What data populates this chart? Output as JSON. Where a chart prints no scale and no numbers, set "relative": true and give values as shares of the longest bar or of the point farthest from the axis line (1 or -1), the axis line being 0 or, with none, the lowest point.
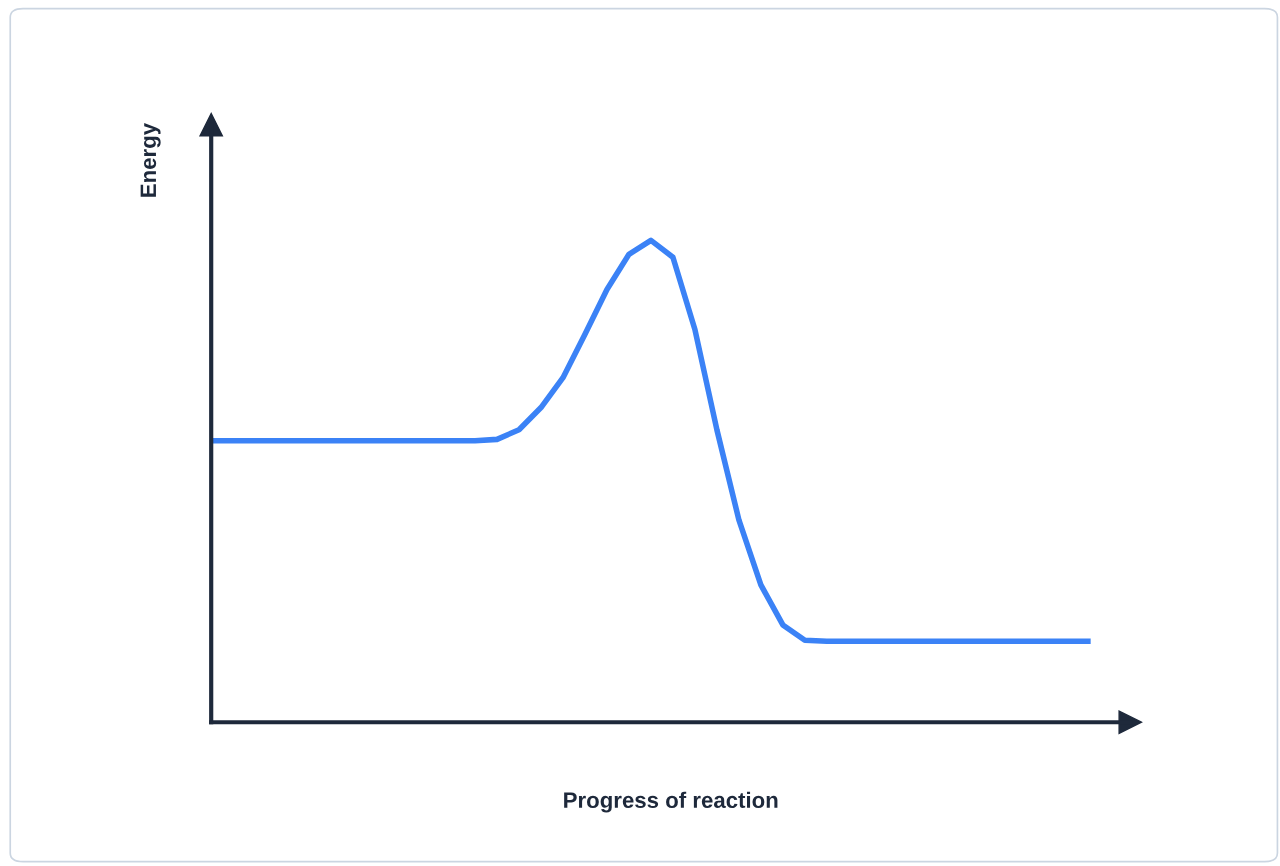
{
  "chart_data": {
    "type": "line",
    "xlabel": "Progress of reaction",
    "ylabel": "Energy",
    "relative": true,
    "legend": false,
    "marker": "none",
    "line_style": "solid",
    "tick_labels": false,
    "categories": [
      null,
      null,
      null,
      null,
      null,
      null,
      null,
      null,
      null,
      null,
      null,
      null,
      null,
      null,
      null,
      null,
      null,
      null,
      null,
      null,
      null,
      null,
      null,
      null,
      null,
      null,
      null,
      null,
      null,
      null,
      null,
      null,
      null,
      null,
      null,
      null,
      null,
      null,
      null,
      null,
      null
    ],
    "series": [
      {
        "color": "#3b82f6",
        "values": [
          0.584,
          0.584,
          0.584,
          0.584,
          0.584,
          0.584,
          0.584,
          0.584,
          0.584,
          0.584,
          0.584,
          0.584,
          0.584,
          0.587,
          0.607,
          0.653,
          0.715,
          0.805,
          0.898,
          0.971,
          1.0,
          0.965,
          0.815,
          0.607,
          0.42,
          0.285,
          0.202,
          0.17,
          0.168,
          0.168,
          0.168,
          0.168,
          0.168,
          0.168,
          0.168,
          0.168,
          0.168,
          0.168,
          0.168,
          0.168,
          0.168
        ]
      }
    ]
  }
}
